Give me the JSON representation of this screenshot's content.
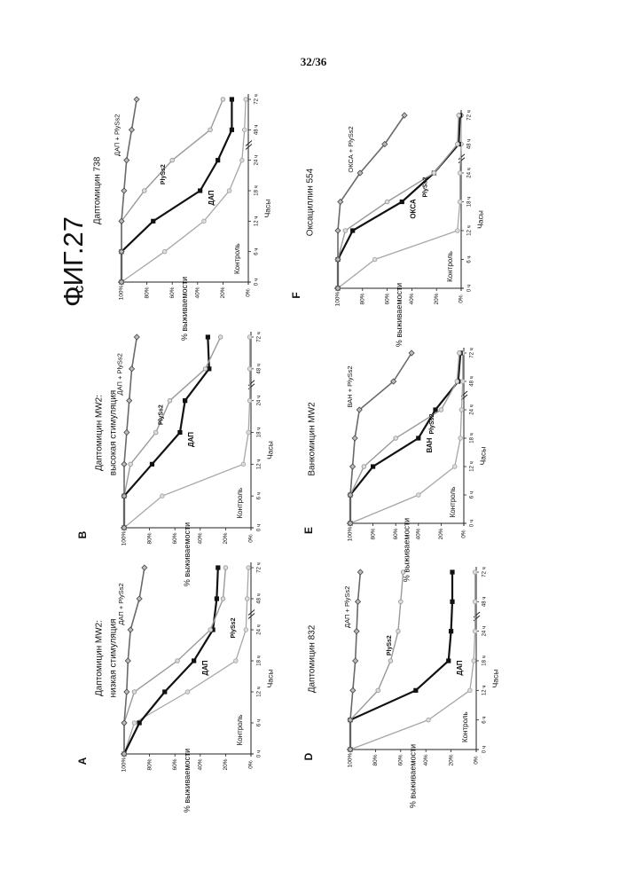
{
  "page": {
    "number": "32/36",
    "figure_title": "ФИГ.27"
  },
  "colors": {
    "control": "#a7a7a7",
    "drug": "#111111",
    "lysin": "#9a9a9a",
    "combo": "#6a6a6a"
  },
  "chart_data": [
    {
      "panel": "A",
      "type": "line",
      "title": "Даптомицин MW2: низкая стимуляция",
      "xlabel": "Часы",
      "ylabel": "% выживаемости",
      "x_ticks": [
        "0 ч",
        "6 ч",
        "12 ч",
        "18 ч",
        "24 ч",
        "48 ч",
        "72 ч"
      ],
      "y_ticks": [
        "100%",
        "80%",
        "60%",
        "40%",
        "20%",
        "0%"
      ],
      "ylim": [
        0,
        100
      ],
      "series": [
        {
          "name": "Контроль",
          "role": "control",
          "marker": "circle",
          "values": [
            100,
            92,
            50,
            12,
            4,
            3,
            2
          ]
        },
        {
          "name": "ДАП",
          "role": "drug",
          "marker": "square",
          "values": [
            100,
            88,
            68,
            45,
            30,
            27,
            26
          ]
        },
        {
          "name": "PlySs2",
          "role": "lysin",
          "marker": "circle",
          "values": [
            100,
            100,
            92,
            58,
            32,
            22,
            20
          ]
        },
        {
          "name": "ДАП + PlySs2",
          "role": "combo",
          "marker": "diamond",
          "values": [
            100,
            100,
            98,
            97,
            95,
            88,
            84
          ]
        }
      ]
    },
    {
      "panel": "B",
      "type": "line",
      "title": "Даптомицин MW2: высокая стимуляция",
      "xlabel": "Часы",
      "ylabel": "% выживаемости",
      "x_ticks": [
        "0 ч",
        "6 ч",
        "12 ч",
        "18 ч",
        "24 ч",
        "48 ч",
        "72 ч"
      ],
      "y_ticks": [
        "100%",
        "80%",
        "60%",
        "40%",
        "20%",
        "0%"
      ],
      "ylim": [
        0,
        100
      ],
      "series": [
        {
          "name": "Контроль",
          "role": "control",
          "marker": "circle",
          "values": [
            100,
            70,
            6,
            2,
            1,
            1,
            1
          ]
        },
        {
          "name": "ДАП",
          "role": "drug",
          "marker": "square",
          "values": [
            100,
            100,
            78,
            56,
            52,
            33,
            34
          ]
        },
        {
          "name": "PlySs2",
          "role": "lysin",
          "marker": "circle",
          "values": [
            100,
            100,
            95,
            75,
            64,
            36,
            24
          ]
        },
        {
          "name": "ДАП + PlySs2",
          "role": "combo",
          "marker": "diamond",
          "values": [
            100,
            100,
            100,
            98,
            96,
            94,
            90
          ]
        }
      ]
    },
    {
      "panel": "C",
      "type": "line",
      "title": "Даптомицин 738",
      "xlabel": "Часы",
      "ylabel": "% выживаемости",
      "x_ticks": [
        "0 ч",
        "6 ч",
        "12 ч",
        "18 ч",
        "24 ч",
        "48 ч",
        "72 ч"
      ],
      "y_ticks": [
        "100%",
        "80%",
        "60%",
        "40%",
        "20%",
        "0%"
      ],
      "ylim": [
        0,
        100
      ],
      "series": [
        {
          "name": "Контроль",
          "role": "control",
          "marker": "circle",
          "values": [
            100,
            66,
            35,
            15,
            5,
            3,
            2
          ]
        },
        {
          "name": "ДАП",
          "role": "drug",
          "marker": "square",
          "values": [
            100,
            100,
            75,
            38,
            24,
            13,
            13
          ]
        },
        {
          "name": "PlySs2",
          "role": "lysin",
          "marker": "circle",
          "values": [
            100,
            100,
            100,
            82,
            60,
            30,
            20
          ]
        },
        {
          "name": "ДАП + PlySs2",
          "role": "combo",
          "marker": "diamond",
          "values": [
            100,
            100,
            100,
            98,
            96,
            92,
            88
          ]
        }
      ]
    },
    {
      "panel": "D",
      "type": "line",
      "title": "Даптомицин 832",
      "xlabel": "Часы",
      "ylabel": "% выживаемости",
      "x_ticks": [
        "0 ч",
        "6 ч",
        "12 ч",
        "18 ч",
        "24 ч",
        "48 ч",
        "72 ч"
      ],
      "y_ticks": [
        "100%",
        "80%",
        "60%",
        "40%",
        "20%",
        "0%"
      ],
      "ylim": [
        0,
        100
      ],
      "series": [
        {
          "name": "Контроль",
          "role": "control",
          "marker": "circle",
          "values": [
            100,
            38,
            5,
            2,
            1,
            1,
            1
          ]
        },
        {
          "name": "ДАП",
          "role": "drug",
          "marker": "square",
          "values": [
            100,
            100,
            48,
            22,
            20,
            19,
            19
          ]
        },
        {
          "name": "PlySs2",
          "role": "lysin",
          "marker": "circle",
          "values": [
            100,
            100,
            78,
            68,
            62,
            60,
            58
          ]
        },
        {
          "name": "ДАП + PlySs2",
          "role": "combo",
          "marker": "diamond",
          "values": [
            100,
            100,
            98,
            96,
            95,
            94,
            92
          ]
        }
      ]
    },
    {
      "panel": "E",
      "type": "line",
      "title": "Ванкомицин MW2",
      "xlabel": "Часы",
      "ylabel": "% выживаемости",
      "x_ticks": [
        "0 ч",
        "6 ч",
        "12 ч",
        "18 ч",
        "24 ч",
        "48 ч",
        "72 ч"
      ],
      "y_ticks": [
        "100%",
        "80%",
        "60%",
        "40%",
        "20%",
        "0%"
      ],
      "ylim": [
        0,
        100
      ],
      "series": [
        {
          "name": "Контроль",
          "role": "control",
          "marker": "circle",
          "values": [
            100,
            40,
            8,
            3,
            2,
            1,
            1
          ]
        },
        {
          "name": "ВАН",
          "role": "drug",
          "marker": "square",
          "values": [
            100,
            100,
            80,
            40,
            25,
            5,
            3
          ]
        },
        {
          "name": "PlySs2",
          "role": "lysin",
          "marker": "circle",
          "values": [
            100,
            100,
            88,
            60,
            20,
            6,
            4
          ]
        },
        {
          "name": "ВАН + PlySs2",
          "role": "combo",
          "marker": "diamond",
          "values": [
            100,
            100,
            98,
            96,
            92,
            62,
            46
          ]
        }
      ]
    },
    {
      "panel": "F",
      "type": "line",
      "title": "Оксациллин 554",
      "xlabel": "Часы",
      "ylabel": "% выживаемости",
      "x_ticks": [
        "0 ч",
        "6 ч",
        "12 ч",
        "18 ч",
        "24 ч",
        "48 ч",
        "72 ч"
      ],
      "y_ticks": [
        "100%",
        "80%",
        "60%",
        "40%",
        "20%",
        "0%"
      ],
      "ylim": [
        0,
        100
      ],
      "series": [
        {
          "name": "Контроль",
          "role": "control",
          "marker": "circle",
          "values": [
            100,
            70,
            3,
            1,
            1,
            0,
            0
          ]
        },
        {
          "name": "ОКСА",
          "role": "drug",
          "marker": "square",
          "values": [
            100,
            100,
            88,
            48,
            22,
            2,
            1
          ]
        },
        {
          "name": "PlySs2",
          "role": "lysin",
          "marker": "circle",
          "values": [
            100,
            100,
            94,
            60,
            22,
            3,
            2
          ]
        },
        {
          "name": "ОКСА + PlySs2",
          "role": "combo",
          "marker": "diamond",
          "values": [
            100,
            100,
            100,
            98,
            82,
            62,
            46
          ]
        }
      ]
    }
  ]
}
